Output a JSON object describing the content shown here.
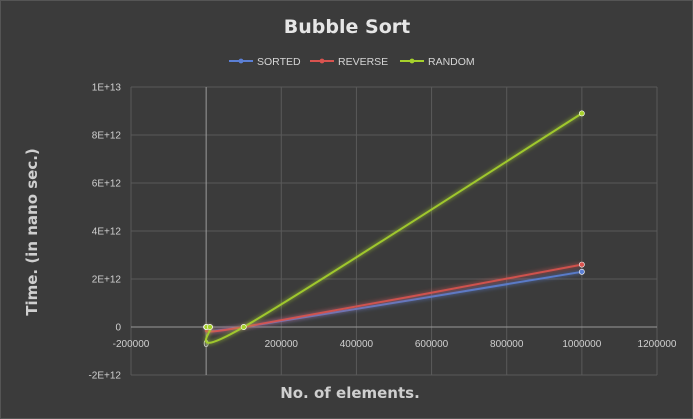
{
  "chart_data": {
    "type": "scatter",
    "title": "Bubble Sort",
    "xlabel": "No. of elements.",
    "ylabel": "Time. (in nano sec.)",
    "xlim": [
      -200000,
      1200000
    ],
    "ylim": [
      -2000000000000.0,
      10000000000000.0
    ],
    "x_ticks": [
      -200000,
      0,
      200000,
      400000,
      600000,
      800000,
      1000000,
      1200000
    ],
    "x_tick_labels": [
      "-200000",
      "0",
      "200000",
      "400000",
      "600000",
      "800000",
      "1000000",
      "1200000"
    ],
    "y_ticks": [
      -2000000000000.0,
      0,
      2000000000000.0,
      4000000000000.0,
      6000000000000.0,
      8000000000000.0,
      10000000000000.0
    ],
    "y_tick_labels": [
      "-2E+12",
      "0",
      "2E+12",
      "4E+12",
      "6E+12",
      "8E+12",
      "1E+13"
    ],
    "grid": true,
    "legend_position": "top",
    "x": [
      100,
      1000,
      10000,
      100000,
      1000000
    ],
    "series": [
      {
        "name": "SORTED",
        "color": "#5b7fd4",
        "values": [
          0,
          0,
          0,
          0,
          2300000000000.0
        ]
      },
      {
        "name": "REVERSE",
        "color": "#d9534f",
        "values": [
          0,
          0,
          0,
          0,
          2600000000000.0
        ]
      },
      {
        "name": "RANDOM",
        "color": "#a6d12c",
        "values": [
          0,
          0,
          0,
          0,
          8900000000000.0
        ]
      }
    ]
  }
}
